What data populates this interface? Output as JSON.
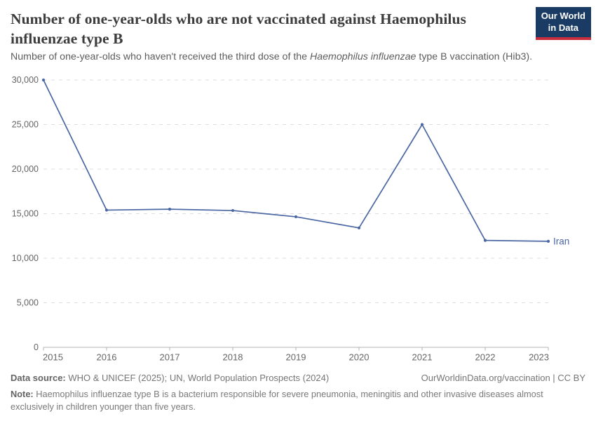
{
  "header": {
    "title": "Number of one-year-olds who are not vaccinated against Haemophilus influenzae type B",
    "subtitle_prefix": "Number of one-year-olds who haven't received the third dose of the ",
    "subtitle_italic": "Haemophilus influenzae",
    "subtitle_suffix": " type B vaccination (Hib3).",
    "logo_line1": "Our World",
    "logo_line2": "in Data"
  },
  "chart_data": {
    "type": "line",
    "title": "Number of one-year-olds who are not vaccinated against Haemophilus influenzae type B",
    "xlabel": "",
    "ylabel": "",
    "x": [
      2015,
      2016,
      2017,
      2018,
      2019,
      2020,
      2021,
      2022,
      2023
    ],
    "series": [
      {
        "name": "Iran",
        "values": [
          30000,
          15400,
          15500,
          15350,
          14650,
          13400,
          25000,
          12000,
          11900
        ],
        "color": "#4a67a3"
      }
    ],
    "ylim": [
      0,
      30000
    ],
    "yticks": [
      0,
      5000,
      10000,
      15000,
      20000,
      25000,
      30000
    ],
    "grid": "horizontal-dashed",
    "legend_position": "line-end-label",
    "entity_label": "Iran"
  },
  "footer": {
    "datasource_label": "Data source:",
    "datasource_text": " WHO & UNICEF (2025); UN, World Population Prospects (2024)",
    "link_text": "OurWorldinData.org/vaccination | CC BY",
    "note_label": "Note:",
    "note_text": " Haemophilus influenzae type B is a bacterium responsible for severe pneumonia, meningitis and other invasive diseases almost exclusively in children younger than five years."
  },
  "colors": {
    "series_blue": "#4a67a3",
    "logo_navy": "#1a3c64",
    "logo_red": "#c82d3c",
    "grid_gray": "#dedede",
    "axis_gray": "#b3b3b3",
    "tick_label_gray": "#666666"
  }
}
